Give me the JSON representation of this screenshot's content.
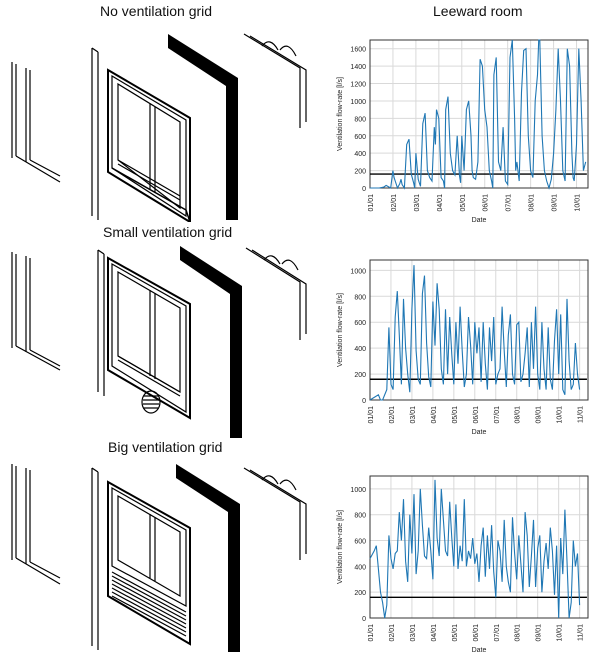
{
  "titles": {
    "left_top": "No ventilation grid",
    "right_top": "Leeward room",
    "left_mid": "Small ventilation grid",
    "left_bot": "Big ventilation grid"
  },
  "colors": {
    "series": "#1f77b4",
    "reference": "#000000",
    "grid": "#d9d9d9"
  },
  "chart_data": [
    {
      "type": "line",
      "xlabel": "Date",
      "ylabel": "Ventilation flow-rate [l/s]",
      "ylim": [
        0,
        1700
      ],
      "yticks": [
        0,
        200,
        400,
        600,
        800,
        1000,
        1200,
        1400,
        1600
      ],
      "xticks": [
        "01/01",
        "02/01",
        "03/01",
        "04/01",
        "05/01",
        "06/01",
        "07/01",
        "08/01",
        "09/01",
        "10/01"
      ],
      "xlim": [
        0,
        9.5
      ],
      "reference_line": 160,
      "series": [
        {
          "x": [
            0.0,
            0.4,
            0.6,
            0.7,
            0.9,
            1.0,
            1.05,
            1.1,
            1.2,
            1.3,
            1.35,
            1.4,
            1.5,
            1.6,
            1.7,
            1.8,
            1.9,
            1.95,
            2.0,
            2.1,
            2.15,
            2.2,
            2.3,
            2.4,
            2.5,
            2.6,
            2.7,
            2.8,
            2.85,
            2.9,
            3.0,
            3.1,
            3.2,
            3.25,
            3.3,
            3.4,
            3.5,
            3.6,
            3.7,
            3.8,
            3.9,
            3.95,
            4.0,
            4.1,
            4.2,
            4.3,
            4.4,
            4.45,
            4.5,
            4.6,
            4.7,
            4.8,
            4.9,
            5.0,
            5.1,
            5.2,
            5.3,
            5.35,
            5.4,
            5.5,
            5.6,
            5.7,
            5.8,
            5.9,
            6.0,
            6.1,
            6.2,
            6.3,
            6.35,
            6.4,
            6.5,
            6.6,
            6.7,
            6.8,
            6.9,
            7.0,
            7.1,
            7.2,
            7.3,
            7.35,
            7.4,
            7.5,
            7.6,
            7.7,
            7.8,
            7.9,
            8.0,
            8.1,
            8.2,
            8.3,
            8.4,
            8.5,
            8.6,
            8.7,
            8.8,
            8.85,
            8.9,
            9.0,
            9.1,
            9.2,
            9.3,
            9.4
          ],
          "y": [
            0,
            0,
            10,
            30,
            0,
            200,
            120,
            80,
            0,
            50,
            100,
            40,
            0,
            500,
            560,
            160,
            60,
            0,
            400,
            100,
            60,
            20,
            740,
            860,
            200,
            120,
            80,
            700,
            500,
            900,
            800,
            120,
            80,
            0,
            900,
            1050,
            400,
            200,
            150,
            600,
            140,
            60,
            600,
            200,
            900,
            1000,
            600,
            200,
            120,
            100,
            300,
            1480,
            1400,
            900,
            700,
            200,
            80,
            0,
            1300,
            1500,
            300,
            200,
            700,
            80,
            40,
            1500,
            1700,
            800,
            200,
            300,
            80,
            1100,
            1580,
            1600,
            600,
            200,
            120,
            1000,
            1300,
            1800,
            1700,
            600,
            200,
            80,
            0,
            100,
            400,
            900,
            1600,
            1000,
            200,
            80,
            1600,
            1400,
            400,
            120,
            80,
            500,
            1600,
            1000,
            200,
            300
          ]
        }
      ]
    },
    {
      "type": "line",
      "xlabel": "Date",
      "ylabel": "Ventilation flow-rate [l/s]",
      "ylim": [
        0,
        1080
      ],
      "yticks": [
        0,
        200,
        400,
        600,
        800,
        1000
      ],
      "xticks": [
        "01/01",
        "02/01",
        "03/01",
        "04/01",
        "05/01",
        "06/01",
        "07/01",
        "08/01",
        "09/01",
        "10/01",
        "11/01"
      ],
      "xlim": [
        0,
        10.4
      ],
      "reference_line": 160,
      "series": [
        {
          "x": [
            0.0,
            0.2,
            0.4,
            0.5,
            0.6,
            0.8,
            0.9,
            1.0,
            1.1,
            1.2,
            1.3,
            1.4,
            1.5,
            1.6,
            1.7,
            1.8,
            1.9,
            2.0,
            2.1,
            2.2,
            2.3,
            2.4,
            2.5,
            2.6,
            2.7,
            2.8,
            2.9,
            3.0,
            3.1,
            3.2,
            3.3,
            3.4,
            3.5,
            3.6,
            3.7,
            3.8,
            3.9,
            4.0,
            4.1,
            4.2,
            4.3,
            4.4,
            4.5,
            4.6,
            4.7,
            4.8,
            4.9,
            5.0,
            5.1,
            5.2,
            5.3,
            5.4,
            5.5,
            5.6,
            5.7,
            5.8,
            5.9,
            6.0,
            6.1,
            6.2,
            6.3,
            6.4,
            6.5,
            6.6,
            6.7,
            6.8,
            6.9,
            7.0,
            7.1,
            7.2,
            7.3,
            7.4,
            7.5,
            7.6,
            7.7,
            7.8,
            7.9,
            8.0,
            8.1,
            8.2,
            8.3,
            8.4,
            8.5,
            8.6,
            8.7,
            8.8,
            8.9,
            9.0,
            9.1,
            9.2,
            9.3,
            9.4,
            9.5,
            9.6,
            9.7,
            9.8,
            9.9,
            10.0
          ],
          "y": [
            0,
            20,
            40,
            0,
            0,
            80,
            560,
            120,
            80,
            640,
            840,
            500,
            120,
            780,
            400,
            200,
            60,
            700,
            1040,
            380,
            160,
            120,
            820,
            960,
            440,
            180,
            100,
            760,
            420,
            900,
            700,
            240,
            120,
            700,
            200,
            640,
            350,
            120,
            600,
            280,
            720,
            380,
            100,
            200,
            640,
            420,
            120,
            600,
            360,
            560,
            140,
            600,
            280,
            80,
            560,
            300,
            640,
            120,
            200,
            240,
            720,
            380,
            100,
            500,
            660,
            200,
            120,
            580,
            600,
            140,
            200,
            360,
            560,
            100,
            600,
            240,
            720,
            200,
            80,
            600,
            240,
            80,
            560,
            160,
            80,
            460,
            700,
            200,
            660,
            80,
            40,
            780,
            300,
            80,
            120,
            440,
            200,
            80
          ]
        }
      ]
    },
    {
      "type": "line",
      "xlabel": "Date",
      "ylabel": "Ventilation flow-rate [l/s]",
      "ylim": [
        0,
        1100
      ],
      "yticks": [
        0,
        200,
        400,
        600,
        800,
        1000
      ],
      "xticks": [
        "01/01",
        "02/01",
        "03/01",
        "04/01",
        "05/01",
        "06/01",
        "07/01",
        "08/01",
        "09/01",
        "10/01",
        "11/01"
      ],
      "xlim": [
        0,
        10.4
      ],
      "reference_line": 160,
      "series": [
        {
          "x": [
            0.0,
            0.1,
            0.2,
            0.3,
            0.4,
            0.5,
            0.6,
            0.7,
            0.8,
            0.9,
            1.0,
            1.1,
            1.2,
            1.3,
            1.4,
            1.5,
            1.6,
            1.7,
            1.8,
            1.9,
            2.0,
            2.1,
            2.2,
            2.3,
            2.4,
            2.5,
            2.6,
            2.7,
            2.8,
            2.9,
            3.0,
            3.1,
            3.2,
            3.3,
            3.4,
            3.5,
            3.6,
            3.7,
            3.8,
            3.9,
            4.0,
            4.1,
            4.2,
            4.3,
            4.4,
            4.5,
            4.6,
            4.7,
            4.8,
            4.9,
            5.0,
            5.1,
            5.2,
            5.3,
            5.4,
            5.5,
            5.6,
            5.7,
            5.8,
            5.9,
            6.0,
            6.1,
            6.2,
            6.3,
            6.4,
            6.5,
            6.6,
            6.7,
            6.8,
            6.9,
            7.0,
            7.1,
            7.2,
            7.3,
            7.4,
            7.5,
            7.6,
            7.7,
            7.8,
            7.9,
            8.0,
            8.1,
            8.2,
            8.3,
            8.4,
            8.5,
            8.6,
            8.7,
            8.8,
            8.9,
            9.0,
            9.1,
            9.2,
            9.3,
            9.4,
            9.5,
            9.6,
            9.7,
            9.8,
            9.9,
            10.0
          ],
          "y": [
            460,
            490,
            520,
            560,
            380,
            200,
            120,
            0,
            100,
            640,
            460,
            380,
            500,
            520,
            820,
            600,
            920,
            440,
            280,
            800,
            500,
            960,
            340,
            520,
            1000,
            720,
            480,
            460,
            700,
            520,
            300,
            1070,
            620,
            480,
            1000,
            760,
            520,
            480,
            900,
            620,
            400,
            880,
            380,
            560,
            440,
            920,
            400,
            520,
            460,
            620,
            420,
            500,
            280,
            560,
            700,
            320,
            640,
            380,
            720,
            360,
            160,
            600,
            520,
            280,
            760,
            400,
            280,
            200,
            780,
            500,
            300,
            640,
            420,
            200,
            820,
            640,
            240,
            480,
            760,
            240,
            540,
            640,
            200,
            440,
            580,
            380,
            700,
            520,
            180,
            560,
            0,
            620,
            340,
            840,
            440,
            0,
            120,
            600,
            400,
            500,
            100
          ]
        }
      ]
    }
  ]
}
